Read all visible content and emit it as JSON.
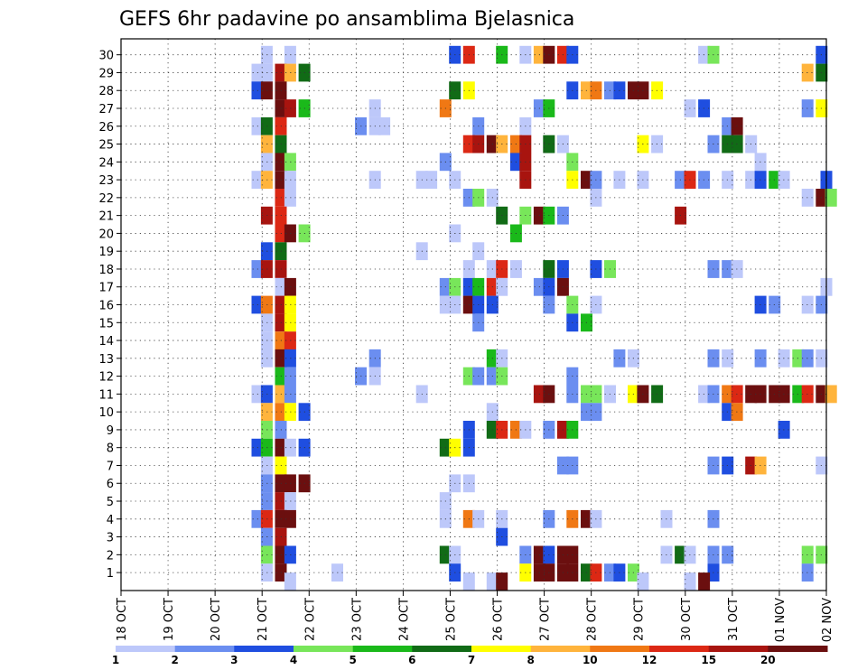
{
  "chart_data": {
    "type": "heatmap",
    "title": "GEFS 6hr padavine po ansamblima Bjelasnica",
    "xlabel": "",
    "ylabel": "",
    "x_tick_labels": [
      "18 OCT",
      "19 OCT",
      "20 OCT",
      "21 OCT",
      "22 OCT",
      "23 OCT",
      "24 OCT",
      "25 OCT",
      "26 OCT",
      "27 OCT",
      "28 OCT",
      "29 OCT",
      "30 OCT",
      "31 OCT",
      "01 NOV",
      "02 NOV"
    ],
    "y_tick_labels": [
      "1",
      "2",
      "3",
      "4",
      "5",
      "6",
      "7",
      "8",
      "9",
      "10",
      "11",
      "12",
      "13",
      "14",
      "15",
      "16",
      "17",
      "18",
      "19",
      "20",
      "21",
      "22",
      "23",
      "24",
      "25",
      "26",
      "27",
      "28",
      "29",
      "30"
    ],
    "grid": true,
    "x_range_days": [
      0,
      15
    ],
    "y_range_members": [
      0,
      30
    ],
    "colorbar": {
      "labels": [
        "1",
        "2",
        "3",
        "4",
        "5",
        "6",
        "7",
        "8",
        "10",
        "12",
        "15",
        "20"
      ],
      "colors": [
        "#bdc8fa",
        "#6b8ef0",
        "#1f4ee0",
        "#78e65a",
        "#1ab91a",
        "#116b16",
        "#ffff00",
        "#ffb43c",
        "#f07814",
        "#dc2814",
        "#a8140f",
        "#6b0f0f"
      ]
    },
    "cells": [
      [
        30,
        3.1,
        0
      ],
      [
        30,
        3.6,
        0
      ],
      [
        30,
        7.1,
        2
      ],
      [
        30,
        7.4,
        9
      ],
      [
        30,
        8.1,
        4
      ],
      [
        30,
        8.6,
        0
      ],
      [
        30,
        8.9,
        7
      ],
      [
        30,
        9.1,
        11
      ],
      [
        30,
        9.4,
        9
      ],
      [
        30,
        9.6,
        2
      ],
      [
        30,
        12.4,
        0
      ],
      [
        30,
        12.6,
        3
      ],
      [
        30,
        14.9,
        2
      ],
      [
        29,
        2.9,
        0
      ],
      [
        29,
        3.1,
        0
      ],
      [
        29,
        3.4,
        10
      ],
      [
        29,
        3.6,
        7
      ],
      [
        29,
        3.9,
        5
      ],
      [
        29,
        14.6,
        7
      ],
      [
        29,
        14.9,
        5
      ],
      [
        28,
        2.9,
        2
      ],
      [
        28,
        3.1,
        11
      ],
      [
        28,
        3.4,
        11
      ],
      [
        28,
        7.1,
        5
      ],
      [
        28,
        7.4,
        6
      ],
      [
        28,
        9.6,
        2
      ],
      [
        28,
        9.9,
        7
      ],
      [
        28,
        10.1,
        8
      ],
      [
        28,
        10.4,
        1
      ],
      [
        28,
        10.6,
        2
      ],
      [
        28,
        10.9,
        11
      ],
      [
        28,
        11.1,
        11
      ],
      [
        28,
        11.4,
        6
      ],
      [
        27,
        3.4,
        11
      ],
      [
        27,
        3.6,
        10
      ],
      [
        27,
        3.9,
        4
      ],
      [
        27,
        5.4,
        0
      ],
      [
        27,
        6.9,
        8
      ],
      [
        27,
        8.9,
        1
      ],
      [
        27,
        9.1,
        4
      ],
      [
        27,
        12.1,
        0
      ],
      [
        27,
        12.4,
        2
      ],
      [
        27,
        14.6,
        1
      ],
      [
        27,
        14.9,
        6
      ],
      [
        26,
        2.9,
        0
      ],
      [
        26,
        3.1,
        5
      ],
      [
        26,
        3.4,
        9
      ],
      [
        26,
        5.1,
        1
      ],
      [
        26,
        5.4,
        0
      ],
      [
        26,
        5.6,
        0
      ],
      [
        26,
        7.6,
        1
      ],
      [
        26,
        8.6,
        0
      ],
      [
        26,
        12.9,
        1
      ],
      [
        26,
        13.1,
        11
      ],
      [
        25,
        3.1,
        7
      ],
      [
        25,
        3.4,
        5
      ],
      [
        25,
        7.4,
        9
      ],
      [
        25,
        7.6,
        10
      ],
      [
        25,
        7.9,
        11
      ],
      [
        25,
        8.1,
        7
      ],
      [
        25,
        8.4,
        8
      ],
      [
        25,
        8.6,
        10
      ],
      [
        25,
        9.1,
        5
      ],
      [
        25,
        9.4,
        0
      ],
      [
        25,
        11.1,
        6
      ],
      [
        25,
        11.4,
        0
      ],
      [
        25,
        12.6,
        1
      ],
      [
        25,
        12.9,
        5
      ],
      [
        25,
        13.1,
        5
      ],
      [
        25,
        13.4,
        0
      ],
      [
        24,
        3.1,
        0
      ],
      [
        24,
        3.4,
        11
      ],
      [
        24,
        3.6,
        3
      ],
      [
        24,
        6.9,
        1
      ],
      [
        24,
        8.4,
        2
      ],
      [
        24,
        8.6,
        10
      ],
      [
        24,
        9.6,
        3
      ],
      [
        24,
        13.6,
        0
      ],
      [
        23,
        2.9,
        0
      ],
      [
        23,
        3.1,
        7
      ],
      [
        23,
        3.4,
        11
      ],
      [
        23,
        3.6,
        0
      ],
      [
        23,
        5.4,
        0
      ],
      [
        23,
        6.4,
        0
      ],
      [
        23,
        6.6,
        0
      ],
      [
        23,
        7.1,
        0
      ],
      [
        23,
        8.6,
        10
      ],
      [
        23,
        9.6,
        6
      ],
      [
        23,
        9.9,
        11
      ],
      [
        23,
        10.1,
        1
      ],
      [
        23,
        10.6,
        0
      ],
      [
        23,
        11.1,
        0
      ],
      [
        23,
        11.9,
        1
      ],
      [
        23,
        12.1,
        9
      ],
      [
        23,
        12.4,
        1
      ],
      [
        23,
        12.9,
        0
      ],
      [
        23,
        13.4,
        0
      ],
      [
        23,
        13.6,
        2
      ],
      [
        23,
        13.9,
        4
      ],
      [
        23,
        14.1,
        0
      ],
      [
        23,
        15.0,
        2
      ],
      [
        22,
        3.4,
        9
      ],
      [
        22,
        3.6,
        0
      ],
      [
        22,
        7.4,
        1
      ],
      [
        22,
        7.6,
        3
      ],
      [
        22,
        7.9,
        0
      ],
      [
        22,
        10.1,
        0
      ],
      [
        22,
        14.6,
        0
      ],
      [
        22,
        14.9,
        11
      ],
      [
        22,
        15.1,
        3
      ],
      [
        21,
        3.1,
        10
      ],
      [
        21,
        3.4,
        9
      ],
      [
        21,
        8.1,
        5
      ],
      [
        21,
        8.6,
        3
      ],
      [
        21,
        8.9,
        11
      ],
      [
        21,
        9.1,
        4
      ],
      [
        21,
        9.4,
        1
      ],
      [
        21,
        11.9,
        10
      ],
      [
        20,
        3.4,
        9
      ],
      [
        20,
        3.6,
        11
      ],
      [
        20,
        3.9,
        3
      ],
      [
        20,
        7.1,
        0
      ],
      [
        20,
        8.4,
        4
      ],
      [
        19,
        3.1,
        2
      ],
      [
        19,
        3.4,
        5
      ],
      [
        19,
        6.4,
        0
      ],
      [
        19,
        7.6,
        0
      ],
      [
        18,
        2.9,
        1
      ],
      [
        18,
        3.1,
        10
      ],
      [
        18,
        3.4,
        10
      ],
      [
        18,
        7.4,
        0
      ],
      [
        18,
        7.9,
        0
      ],
      [
        18,
        8.1,
        9
      ],
      [
        18,
        8.4,
        0
      ],
      [
        18,
        9.1,
        5
      ],
      [
        18,
        9.4,
        2
      ],
      [
        18,
        10.1,
        2
      ],
      [
        18,
        10.4,
        3
      ],
      [
        18,
        12.6,
        1
      ],
      [
        18,
        12.9,
        1
      ],
      [
        18,
        13.1,
        0
      ],
      [
        17,
        3.4,
        0
      ],
      [
        17,
        3.6,
        11
      ],
      [
        17,
        6.9,
        1
      ],
      [
        17,
        7.1,
        3
      ],
      [
        17,
        7.4,
        2
      ],
      [
        17,
        7.6,
        4
      ],
      [
        17,
        7.9,
        9
      ],
      [
        17,
        8.1,
        0
      ],
      [
        17,
        8.9,
        1
      ],
      [
        17,
        9.1,
        2
      ],
      [
        17,
        9.4,
        11
      ],
      [
        17,
        15.0,
        0
      ],
      [
        16,
        2.9,
        2
      ],
      [
        16,
        3.1,
        8
      ],
      [
        16,
        3.4,
        10
      ],
      [
        16,
        3.6,
        6
      ],
      [
        16,
        6.9,
        0
      ],
      [
        16,
        7.1,
        0
      ],
      [
        16,
        7.4,
        11
      ],
      [
        16,
        7.6,
        2
      ],
      [
        16,
        7.9,
        2
      ],
      [
        16,
        9.1,
        1
      ],
      [
        16,
        9.6,
        3
      ],
      [
        16,
        10.1,
        0
      ],
      [
        16,
        13.6,
        2
      ],
      [
        16,
        13.9,
        1
      ],
      [
        16,
        14.6,
        0
      ],
      [
        16,
        14.9,
        1
      ],
      [
        15,
        3.1,
        0
      ],
      [
        15,
        3.4,
        10
      ],
      [
        15,
        3.6,
        6
      ],
      [
        15,
        7.6,
        1
      ],
      [
        15,
        9.6,
        2
      ],
      [
        15,
        9.9,
        4
      ],
      [
        14,
        3.1,
        0
      ],
      [
        14,
        3.4,
        8
      ],
      [
        14,
        3.6,
        9
      ],
      [
        13,
        3.1,
        0
      ],
      [
        13,
        3.4,
        11
      ],
      [
        13,
        3.6,
        2
      ],
      [
        13,
        5.4,
        1
      ],
      [
        13,
        7.9,
        4
      ],
      [
        13,
        8.1,
        0
      ],
      [
        13,
        10.6,
        1
      ],
      [
        13,
        10.9,
        0
      ],
      [
        13,
        12.6,
        1
      ],
      [
        13,
        12.9,
        0
      ],
      [
        13,
        13.6,
        1
      ],
      [
        13,
        14.1,
        0
      ],
      [
        13,
        14.4,
        3
      ],
      [
        13,
        14.6,
        1
      ],
      [
        13,
        14.9,
        0
      ],
      [
        12,
        3.4,
        4
      ],
      [
        12,
        3.6,
        1
      ],
      [
        12,
        5.1,
        1
      ],
      [
        12,
        5.4,
        0
      ],
      [
        12,
        7.4,
        3
      ],
      [
        12,
        7.6,
        1
      ],
      [
        12,
        7.9,
        1
      ],
      [
        12,
        8.1,
        3
      ],
      [
        12,
        9.6,
        1
      ],
      [
        11,
        2.9,
        0
      ],
      [
        11,
        3.1,
        2
      ],
      [
        11,
        3.4,
        7
      ],
      [
        11,
        3.6,
        1
      ],
      [
        11,
        6.4,
        0
      ],
      [
        11,
        8.9,
        10
      ],
      [
        11,
        9.1,
        11
      ],
      [
        11,
        9.6,
        1
      ],
      [
        11,
        9.9,
        3
      ],
      [
        11,
        10.1,
        3
      ],
      [
        11,
        10.4,
        0
      ],
      [
        11,
        10.9,
        6
      ],
      [
        11,
        11.1,
        11
      ],
      [
        11,
        11.4,
        5
      ],
      [
        11,
        12.4,
        0
      ],
      [
        11,
        12.6,
        1
      ],
      [
        11,
        12.9,
        8
      ],
      [
        11,
        13.1,
        9
      ],
      [
        11,
        13.4,
        11
      ],
      [
        11,
        13.6,
        11
      ],
      [
        11,
        13.9,
        11
      ],
      [
        11,
        14.1,
        11
      ],
      [
        11,
        14.4,
        4
      ],
      [
        11,
        14.6,
        9
      ],
      [
        11,
        14.9,
        11
      ],
      [
        11,
        15.1,
        7
      ],
      [
        10,
        3.1,
        7
      ],
      [
        10,
        3.4,
        8
      ],
      [
        10,
        3.6,
        6
      ],
      [
        10,
        3.9,
        2
      ],
      [
        10,
        7.9,
        0
      ],
      [
        10,
        9.9,
        1
      ],
      [
        10,
        10.1,
        1
      ],
      [
        10,
        12.9,
        2
      ],
      [
        10,
        13.1,
        8
      ],
      [
        9,
        3.1,
        3
      ],
      [
        9,
        3.4,
        1
      ],
      [
        9,
        7.4,
        2
      ],
      [
        9,
        7.9,
        5
      ],
      [
        9,
        8.1,
        9
      ],
      [
        9,
        8.4,
        8
      ],
      [
        9,
        8.6,
        0
      ],
      [
        9,
        9.1,
        1
      ],
      [
        9,
        9.4,
        10
      ],
      [
        9,
        9.6,
        4
      ],
      [
        9,
        14.1,
        2
      ],
      [
        8,
        2.9,
        2
      ],
      [
        8,
        3.1,
        4
      ],
      [
        8,
        3.4,
        11
      ],
      [
        8,
        3.6,
        0
      ],
      [
        8,
        3.9,
        2
      ],
      [
        8,
        6.9,
        5
      ],
      [
        8,
        7.1,
        6
      ],
      [
        8,
        7.4,
        2
      ],
      [
        7,
        3.1,
        0
      ],
      [
        7,
        3.4,
        6
      ],
      [
        7,
        9.4,
        1
      ],
      [
        7,
        9.6,
        1
      ],
      [
        7,
        12.6,
        1
      ],
      [
        7,
        12.9,
        2
      ],
      [
        7,
        13.4,
        10
      ],
      [
        7,
        13.6,
        7
      ],
      [
        7,
        14.9,
        0
      ],
      [
        6,
        3.1,
        1
      ],
      [
        6,
        3.4,
        11
      ],
      [
        6,
        3.6,
        11
      ],
      [
        6,
        3.9,
        11
      ],
      [
        6,
        7.1,
        0
      ],
      [
        6,
        7.4,
        0
      ],
      [
        5,
        3.1,
        1
      ],
      [
        5,
        3.4,
        10
      ],
      [
        5,
        3.6,
        0
      ],
      [
        5,
        6.9,
        0
      ],
      [
        4,
        2.9,
        1
      ],
      [
        4,
        3.1,
        9
      ],
      [
        4,
        3.4,
        11
      ],
      [
        4,
        3.6,
        11
      ],
      [
        4,
        6.9,
        0
      ],
      [
        4,
        7.4,
        8
      ],
      [
        4,
        7.6,
        0
      ],
      [
        4,
        8.1,
        0
      ],
      [
        4,
        9.1,
        1
      ],
      [
        4,
        9.6,
        8
      ],
      [
        4,
        9.9,
        11
      ],
      [
        4,
        10.1,
        0
      ],
      [
        4,
        11.6,
        0
      ],
      [
        4,
        12.6,
        1
      ],
      [
        3,
        3.1,
        1
      ],
      [
        3,
        3.4,
        10
      ],
      [
        3,
        8.1,
        2
      ],
      [
        2,
        3.1,
        3
      ],
      [
        2,
        3.4,
        11
      ],
      [
        2,
        3.6,
        2
      ],
      [
        2,
        6.9,
        5
      ],
      [
        2,
        7.1,
        0
      ],
      [
        2,
        8.6,
        1
      ],
      [
        2,
        8.9,
        11
      ],
      [
        2,
        9.1,
        2
      ],
      [
        2,
        9.4,
        11
      ],
      [
        2,
        9.6,
        11
      ],
      [
        2,
        11.6,
        0
      ],
      [
        2,
        11.9,
        5
      ],
      [
        2,
        12.1,
        0
      ],
      [
        2,
        12.6,
        1
      ],
      [
        2,
        12.9,
        1
      ],
      [
        2,
        14.6,
        3
      ],
      [
        2,
        14.9,
        3
      ],
      [
        1,
        3.1,
        0
      ],
      [
        1,
        3.4,
        11
      ],
      [
        1,
        4.6,
        0
      ],
      [
        1,
        7.1,
        2
      ],
      [
        1,
        8.6,
        6
      ],
      [
        1,
        8.9,
        11
      ],
      [
        1,
        9.1,
        11
      ],
      [
        1,
        9.4,
        11
      ],
      [
        1,
        9.6,
        11
      ],
      [
        1,
        9.9,
        5
      ],
      [
        1,
        10.1,
        9
      ],
      [
        1,
        10.4,
        1
      ],
      [
        1,
        10.6,
        2
      ],
      [
        1,
        10.9,
        3
      ],
      [
        1,
        12.6,
        2
      ],
      [
        1,
        14.6,
        1
      ],
      [
        0.5,
        3.6,
        0
      ],
      [
        0.5,
        7.4,
        0
      ],
      [
        0.5,
        7.9,
        0
      ],
      [
        0.5,
        8.1,
        11
      ],
      [
        0.5,
        11.1,
        0
      ],
      [
        0.5,
        12.1,
        0
      ],
      [
        0.5,
        12.4,
        11
      ]
    ]
  }
}
